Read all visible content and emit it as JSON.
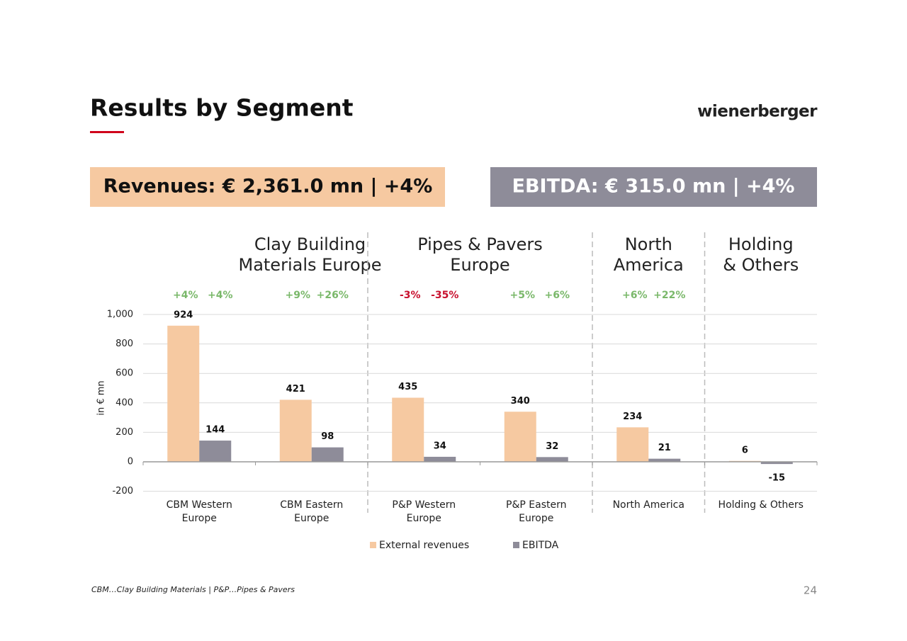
{
  "header": {
    "title": "Results by Segment",
    "logo": "wienerberger"
  },
  "banners": {
    "revenues": "Revenues: € 2,361.0 mn | +4%",
    "ebitda": "EBITDA: € 315.0 mn | +4%"
  },
  "segments": [
    [
      "Clay Building",
      "Materials Europe"
    ],
    [
      "Pipes & Pavers",
      "Europe"
    ],
    [
      "North",
      "America"
    ],
    [
      "Holding",
      "& Others"
    ]
  ],
  "chart_data": {
    "type": "bar",
    "y_label": "in € mn",
    "categories": [
      [
        "CBM Western",
        "Europe"
      ],
      [
        "CBM Eastern",
        "Europe"
      ],
      [
        "P&P Western",
        "Europe"
      ],
      [
        "P&P Eastern",
        "Europe"
      ],
      [
        "North America"
      ],
      [
        "Holding & Others"
      ]
    ],
    "series": [
      {
        "name": "External revenues",
        "color": "#f6c9a1",
        "values": [
          924,
          421,
          435,
          340,
          234,
          6
        ],
        "changes": [
          {
            "text": "+4%",
            "color": "#7ab86a"
          },
          {
            "text": "+9%",
            "color": "#7ab86a"
          },
          {
            "text": "-3%",
            "color": "#c8102e"
          },
          {
            "text": "+5%",
            "color": "#7ab86a"
          },
          {
            "text": "+6%",
            "color": "#7ab86a"
          },
          null
        ]
      },
      {
        "name": "EBITDA",
        "color": "#8e8c99",
        "values": [
          144,
          98,
          34,
          32,
          21,
          -15
        ],
        "changes": [
          {
            "text": "+4%",
            "color": "#7ab86a"
          },
          {
            "text": "+26%",
            "color": "#7ab86a"
          },
          {
            "text": "-35%",
            "color": "#c8102e"
          },
          {
            "text": "+6%",
            "color": "#7ab86a"
          },
          {
            "text": "+22%",
            "color": "#7ab86a"
          },
          null
        ]
      }
    ],
    "ylim": [
      -200,
      1000
    ],
    "yticks": [
      -200,
      0,
      200,
      400,
      600,
      800,
      {
        "value": 1000,
        "label": "1,000"
      }
    ],
    "grid": true
  },
  "footer": {
    "note": "CBM…Clay Building Materials | P&P…Pipes & Pavers",
    "page": "24"
  }
}
